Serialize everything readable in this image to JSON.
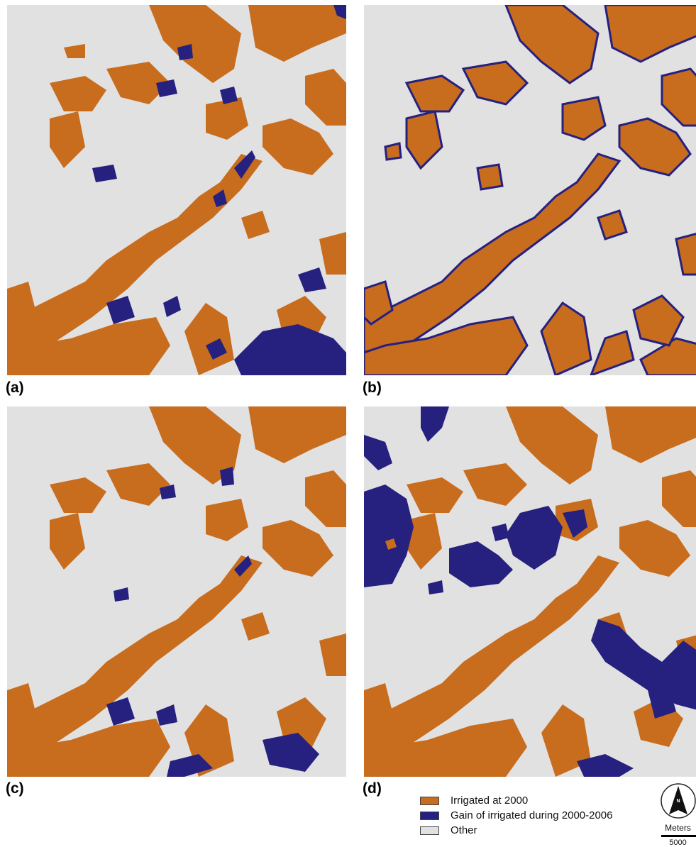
{
  "panels": [
    {
      "id": "a",
      "label": "(a)"
    },
    {
      "id": "b",
      "label": "(b)"
    },
    {
      "id": "c",
      "label": "(c)"
    },
    {
      "id": "d",
      "label": "(d)"
    }
  ],
  "legend": {
    "items": [
      {
        "label": "Irrigated at 2000",
        "color": "#c86c1e"
      },
      {
        "label": "Gain of irrigated during 2000-2006",
        "color": "#26207f"
      },
      {
        "label": "Other",
        "color": "#e1e1e1"
      }
    ]
  },
  "north_arrow": {
    "letter": "N"
  },
  "scale_bar": {
    "title": "Meters",
    "value": "5000"
  },
  "colors": {
    "irrigated": "#c86c1e",
    "gain": "#26207f",
    "other": "#e1e1e1"
  }
}
